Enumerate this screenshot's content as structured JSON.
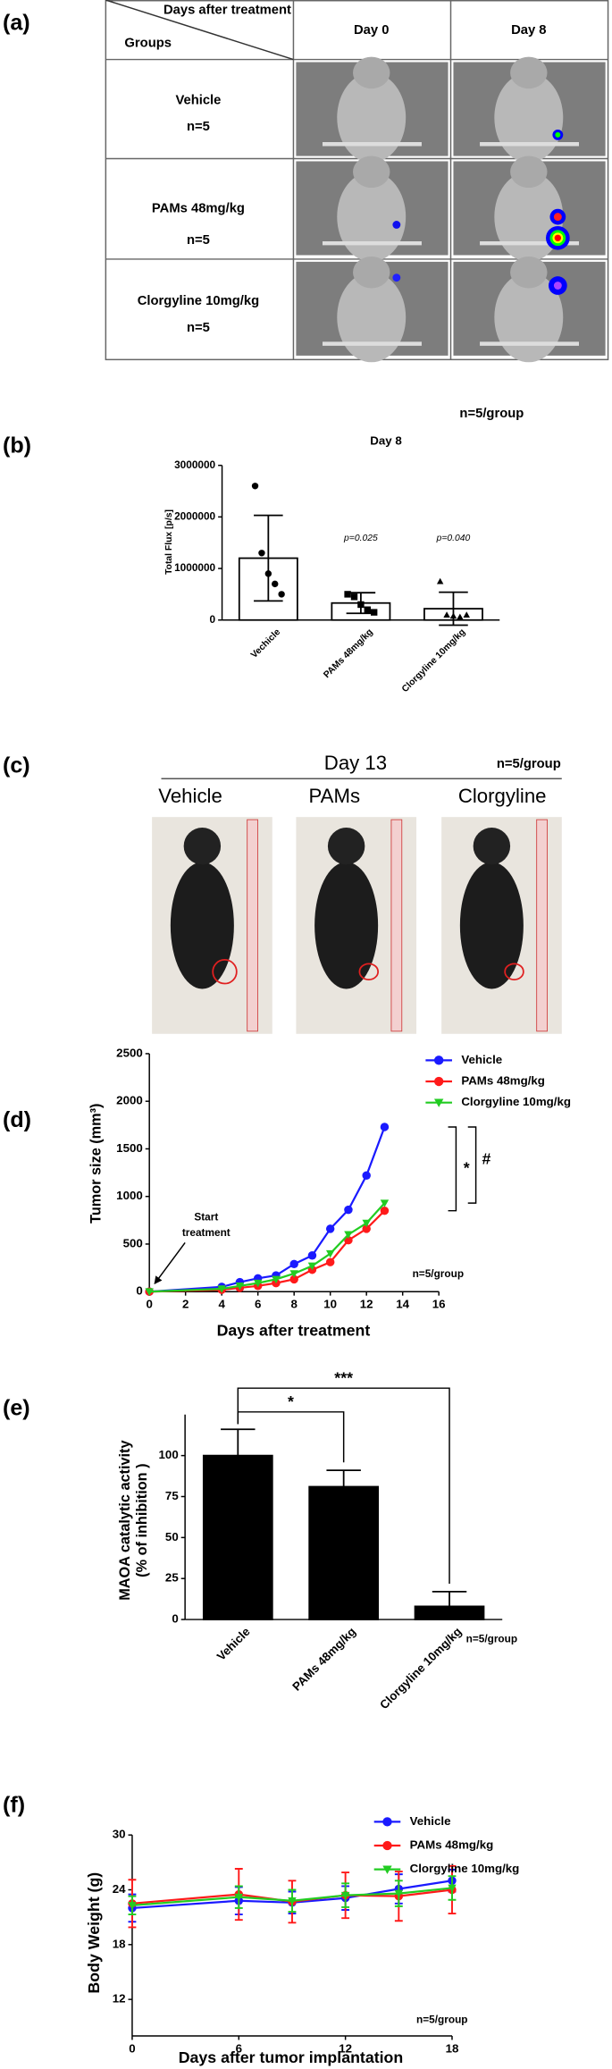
{
  "panel_labels": [
    "(a)",
    "(b)",
    "(c)",
    "(d)",
    "(e)",
    "(f)"
  ],
  "panel_a": {
    "header_days": "Days after treatment",
    "header_groups": "Groups",
    "columns": [
      "Day 0",
      "Day 8"
    ],
    "rows": [
      {
        "group": "Vehicle",
        "n": "n=5"
      },
      {
        "group": "PAMs 48mg/kg",
        "n": "n=5"
      },
      {
        "group": "Clorgyline 10mg/kg",
        "n": "n=5"
      }
    ]
  },
  "panel_c": {
    "title": "Day 13",
    "note": "n=5/group",
    "groups": [
      "Vehicle",
      "PAMs",
      "Clorgyline"
    ]
  },
  "chart_data": [
    {
      "type": "bar",
      "title": "Day 8",
      "annotation": "n=5/group",
      "ylabel": "Total Flux [p/s]",
      "categories": [
        "Vechicle",
        "PAMs 48mg/kg",
        "Clorgyline 10mg/kg"
      ],
      "values": [
        1200000,
        330000,
        220000
      ],
      "errors": [
        830000,
        200000,
        320000
      ],
      "error_bars": "both",
      "points": [
        [
          2600000,
          1300000,
          900000,
          700000,
          500000
        ],
        [
          500000,
          450000,
          300000,
          200000,
          150000
        ],
        [
          750000,
          100000,
          80000,
          60000,
          100000
        ]
      ],
      "markers": [
        "circle",
        "square",
        "triangle"
      ],
      "p_values": [
        null,
        "p=0.025",
        "p=0.040"
      ],
      "color": "#000000",
      "bar_fill": "#ffffff",
      "ylim": [
        0,
        3000000
      ],
      "yticks": [
        0,
        1000000,
        2000000,
        3000000
      ]
    },
    {
      "type": "line",
      "ylabel": "Tumor size (mm³)",
      "xlabel": "Days after treatment",
      "x": [
        0,
        4,
        5,
        6,
        7,
        8,
        9,
        10,
        11,
        12,
        13
      ],
      "series": [
        {
          "name": "Vehicle",
          "color": "#1a1aff",
          "marker": "circle",
          "values": [
            0,
            50,
            100,
            140,
            170,
            290,
            380,
            660,
            860,
            1220,
            1730
          ]
        },
        {
          "name": "PAMs 48mg/kg",
          "color": "#ff1a1a",
          "marker": "circle",
          "values": [
            0,
            20,
            40,
            60,
            90,
            130,
            230,
            310,
            540,
            660,
            850
          ]
        },
        {
          "name": "Clorgyline 10mg/kg",
          "color": "#22cc22",
          "marker": "triangle-down",
          "values": [
            0,
            30,
            60,
            90,
            130,
            190,
            270,
            400,
            600,
            720,
            930
          ]
        }
      ],
      "xlim": [
        0,
        16
      ],
      "xticks": [
        0,
        2,
        4,
        6,
        8,
        10,
        12,
        14,
        16
      ],
      "ylim": [
        0,
        2500
      ],
      "yticks": [
        0,
        500,
        1000,
        1500,
        2000,
        2500
      ],
      "start_label": [
        "Start",
        "treatment"
      ],
      "note": "n=5/group",
      "significance": [
        "*",
        "#"
      ]
    },
    {
      "type": "bar",
      "ylabel": [
        "MAOA catalytic activity",
        "(% of inhibition )"
      ],
      "categories": [
        "Vehicle",
        "PAMs 48mg/kg",
        "Clorgyline 10mg/kg"
      ],
      "values": [
        100,
        81,
        8
      ],
      "errors": [
        16,
        10,
        9
      ],
      "error_bars": "up",
      "color": "#000000",
      "ylim": [
        0,
        125
      ],
      "yticks": [
        0,
        25,
        50,
        75,
        100
      ],
      "significance": [
        "*",
        "***"
      ],
      "note": "n=5/group"
    },
    {
      "type": "line",
      "ylabel": "Body Weight (g)",
      "xlabel": "Days after tumor implantation",
      "x": [
        0,
        6,
        9,
        12,
        15,
        18
      ],
      "series": [
        {
          "name": "Vehicle",
          "color": "#1a1aff",
          "marker": "circle",
          "values": [
            22,
            22.8,
            22.6,
            23.1,
            24.1,
            25
          ],
          "errors": [
            1.5,
            1.5,
            1.2,
            1.3,
            1.6,
            1.2
          ]
        },
        {
          "name": "PAMs 48mg/kg",
          "color": "#ff1a1a",
          "marker": "circle",
          "values": [
            22.5,
            23.5,
            22.7,
            23.4,
            23.3,
            24
          ],
          "errors": [
            2.6,
            2.8,
            2.3,
            2.5,
            2.7,
            2.6
          ]
        },
        {
          "name": "Clorgyline 10mg/kg",
          "color": "#22cc22",
          "marker": "triangle-down",
          "values": [
            22.3,
            23.2,
            22.8,
            23.4,
            23.6,
            24.2
          ],
          "errors": [
            1.0,
            1.2,
            1.2,
            1.3,
            1.4,
            1.3
          ]
        }
      ],
      "xlim": [
        0,
        18
      ],
      "xticks": [
        0,
        6,
        12,
        18
      ],
      "ylim": [
        8,
        30
      ],
      "yticks": [
        12,
        18,
        24,
        30
      ],
      "note": "n=5/group"
    }
  ]
}
